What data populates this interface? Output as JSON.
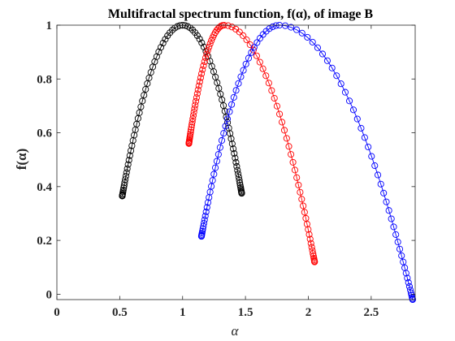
{
  "chart_data": {
    "type": "line",
    "title": "Multifractal spectrum function, f(α), of image B",
    "xlabel": "α",
    "ylabel": "f(α)",
    "xlim": [
      0,
      2.85
    ],
    "ylim": [
      -0.02,
      1
    ],
    "x_ticks": [
      "0",
      "0.5",
      "1",
      "1.5",
      "2",
      "2.5"
    ],
    "x_tick_values": [
      0,
      0.5,
      1,
      1.5,
      2,
      2.5
    ],
    "y_ticks": [
      "0",
      "0.2",
      "0.4",
      "0.6",
      "0.8",
      "1"
    ],
    "y_tick_values": [
      0,
      0.2,
      0.4,
      0.6,
      0.8,
      1
    ],
    "grid": false,
    "legend": false,
    "markers": "open-circle",
    "series": [
      {
        "color": "#000000",
        "left": {
          "alpha": 0.52,
          "f": 0.365
        },
        "peak": {
          "alpha": 1.0,
          "f": 1.0
        },
        "right": {
          "alpha": 1.47,
          "f": 0.375
        }
      },
      {
        "color": "#ff0000",
        "left": {
          "alpha": 1.05,
          "f": 0.56
        },
        "peak": {
          "alpha": 1.33,
          "f": 1.0
        },
        "right": {
          "alpha": 2.05,
          "f": 0.12
        }
      },
      {
        "color": "#0000ff",
        "left": {
          "alpha": 1.15,
          "f": 0.215
        },
        "peak": {
          "alpha": 1.77,
          "f": 1.0
        },
        "right": {
          "alpha": 2.83,
          "f": -0.02
        }
      }
    ]
  }
}
